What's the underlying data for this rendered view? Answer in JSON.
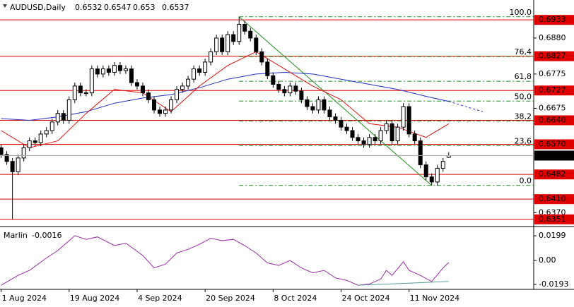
{
  "chart_data": {
    "type": "candlestick",
    "symbol": "AUDUSD,Daily",
    "x": [
      0,
      1,
      2,
      3,
      4,
      5,
      6,
      7,
      8,
      9,
      10,
      11,
      12,
      13,
      14,
      15,
      16,
      17,
      18,
      19,
      20,
      21,
      22,
      23,
      24,
      25,
      26,
      27,
      28,
      29,
      30,
      31,
      32,
      33,
      34,
      35,
      36,
      37,
      38,
      39,
      40,
      41,
      42,
      43,
      44,
      45,
      46,
      47,
      48,
      49,
      50,
      51,
      52,
      53,
      54,
      55,
      56,
      57,
      58,
      59,
      60,
      61,
      62,
      63,
      64,
      65,
      66,
      67,
      68,
      69,
      70,
      71,
      72,
      73,
      74,
      75,
      76,
      77,
      78,
      79
    ],
    "open": [
      0.656,
      0.654,
      0.652,
      0.649,
      0.653,
      0.656,
      0.658,
      0.6575,
      0.66,
      0.661,
      0.6635,
      0.666,
      0.664,
      0.67,
      0.674,
      0.672,
      0.672,
      0.679,
      0.6775,
      0.679,
      0.678,
      0.68,
      0.6785,
      0.679,
      0.675,
      0.674,
      0.672,
      0.67,
      0.667,
      0.666,
      0.667,
      0.67,
      0.673,
      0.674,
      0.676,
      0.679,
      0.678,
      0.681,
      0.684,
      0.688,
      0.684,
      0.689,
      0.687,
      0.692,
      0.69,
      0.688,
      0.684,
      0.681,
      0.677,
      0.6745,
      0.673,
      0.672,
      0.674,
      0.6725,
      0.67,
      0.668,
      0.667,
      0.67,
      0.667,
      0.665,
      0.664,
      0.662,
      0.661,
      0.659,
      0.658,
      0.657,
      0.659,
      0.658,
      0.661,
      0.663,
      0.658,
      0.662,
      0.668,
      0.66,
      0.658,
      0.651,
      0.6475,
      0.646,
      0.65,
      0.6532
    ],
    "high": [
      0.657,
      0.655,
      0.653,
      0.654,
      0.657,
      0.659,
      0.659,
      0.661,
      0.662,
      0.6645,
      0.667,
      0.667,
      0.671,
      0.675,
      0.675,
      0.673,
      0.68,
      0.68,
      0.68,
      0.68,
      0.681,
      0.681,
      0.68,
      0.68,
      0.676,
      0.675,
      0.673,
      0.671,
      0.668,
      0.668,
      0.671,
      0.674,
      0.675,
      0.677,
      0.68,
      0.68,
      0.682,
      0.685,
      0.689,
      0.689,
      0.69,
      0.69,
      0.6942,
      0.693,
      0.691,
      0.689,
      0.685,
      0.682,
      0.678,
      0.6755,
      0.674,
      0.675,
      0.675,
      0.6735,
      0.671,
      0.669,
      0.671,
      0.671,
      0.668,
      0.666,
      0.665,
      0.663,
      0.662,
      0.66,
      0.659,
      0.66,
      0.66,
      0.662,
      0.664,
      0.664,
      0.663,
      0.669,
      0.669,
      0.661,
      0.659,
      0.652,
      0.6485,
      0.651,
      0.653,
      0.6547
    ],
    "low": [
      0.653,
      0.651,
      0.635,
      0.648,
      0.652,
      0.655,
      0.6565,
      0.6565,
      0.659,
      0.66,
      0.6625,
      0.663,
      0.663,
      0.669,
      0.671,
      0.671,
      0.671,
      0.6765,
      0.6765,
      0.677,
      0.677,
      0.6775,
      0.6775,
      0.674,
      0.673,
      0.671,
      0.669,
      0.666,
      0.665,
      0.665,
      0.666,
      0.669,
      0.672,
      0.673,
      0.675,
      0.677,
      0.677,
      0.68,
      0.683,
      0.683,
      0.683,
      0.686,
      0.686,
      0.689,
      0.687,
      0.683,
      0.68,
      0.676,
      0.6735,
      0.672,
      0.671,
      0.671,
      0.6715,
      0.669,
      0.667,
      0.666,
      0.666,
      0.666,
      0.664,
      0.663,
      0.661,
      0.66,
      0.658,
      0.657,
      0.656,
      0.656,
      0.657,
      0.657,
      0.66,
      0.657,
      0.657,
      0.661,
      0.659,
      0.657,
      0.65,
      0.6465,
      0.645,
      0.645,
      0.649,
      0.653
    ],
    "close": [
      0.654,
      0.652,
      0.649,
      0.653,
      0.656,
      0.658,
      0.6575,
      0.66,
      0.661,
      0.6635,
      0.666,
      0.664,
      0.67,
      0.674,
      0.672,
      0.672,
      0.679,
      0.6775,
      0.679,
      0.678,
      0.68,
      0.6785,
      0.679,
      0.675,
      0.674,
      0.672,
      0.67,
      0.667,
      0.666,
      0.667,
      0.67,
      0.673,
      0.674,
      0.676,
      0.679,
      0.678,
      0.681,
      0.684,
      0.688,
      0.684,
      0.689,
      0.687,
      0.692,
      0.69,
      0.688,
      0.684,
      0.681,
      0.677,
      0.6745,
      0.673,
      0.672,
      0.674,
      0.6725,
      0.67,
      0.668,
      0.667,
      0.67,
      0.667,
      0.665,
      0.664,
      0.662,
      0.661,
      0.659,
      0.658,
      0.657,
      0.659,
      0.658,
      0.661,
      0.663,
      0.658,
      0.662,
      0.668,
      0.66,
      0.658,
      0.651,
      0.6475,
      0.646,
      0.65,
      0.652,
      0.6537
    ],
    "xlim": [
      -0.2,
      94
    ],
    "xticks": [
      {
        "value": 0,
        "label": "1 Aug 2024"
      },
      {
        "value": 12,
        "label": "19 Aug 2024"
      },
      {
        "value": 24,
        "label": "4 Sep 2024"
      },
      {
        "value": 36,
        "label": "20 Sep 2024"
      },
      {
        "value": 48,
        "label": "8 Oct 2024"
      },
      {
        "value": 60,
        "label": "24 Oct 2024"
      },
      {
        "value": 72,
        "label": "11 Nov 2024"
      }
    ],
    "ylim": [
      0.633,
      0.6991
    ],
    "yticks": [
      {
        "value": 0.688,
        "label": "0.6880"
      },
      {
        "value": 0.6775,
        "label": "0.6775"
      },
      {
        "value": 0.6675,
        "label": "0.6675"
      },
      {
        "value": 0.637,
        "label": "0.6370"
      }
    ],
    "levels": [
      {
        "value": 0.6933,
        "label": "0.6933"
      },
      {
        "value": 0.6827,
        "label": "0.6827"
      },
      {
        "value": 0.6727,
        "label": "0.6727"
      },
      {
        "value": 0.664,
        "label": "0.6640"
      },
      {
        "value": 0.657,
        "label": "0.6570"
      },
      {
        "value": 0.6482,
        "label": "0.6482"
      },
      {
        "value": 0.641,
        "label": "0.6410"
      },
      {
        "value": 0.6351,
        "label": "0.6351"
      }
    ],
    "level_color": "#e00000",
    "fib": {
      "start": 42,
      "color": "#1f8f1f",
      "levels": [
        {
          "value": 0.6942,
          "label": "100.0"
        },
        {
          "value": 0.6826,
          "label": "76,4"
        },
        {
          "value": 0.6754,
          "label": "61,8"
        },
        {
          "value": 0.6696,
          "label": "50,0"
        },
        {
          "value": 0.6638,
          "label": "38,2"
        },
        {
          "value": 0.6566,
          "label": "23,6"
        },
        {
          "value": 0.645,
          "label": "0.0"
        }
      ]
    },
    "trendline": {
      "color": "#1f8f1f",
      "x": [
        42,
        76
      ],
      "values": [
        0.6942,
        0.645
      ]
    },
    "overlays": [
      {
        "color": "#1f2fbf",
        "x": [
          0,
          5,
          10,
          15,
          20,
          25,
          30,
          35,
          40,
          45,
          50,
          55,
          60,
          65,
          70,
          75,
          79
        ],
        "values": [
          0.6645,
          0.664,
          0.665,
          0.6665,
          0.669,
          0.6705,
          0.6715,
          0.6735,
          0.676,
          0.6775,
          0.678,
          0.6775,
          0.676,
          0.6745,
          0.673,
          0.671,
          0.6695
        ]
      },
      {
        "color": "#e01010",
        "x": [
          0,
          5,
          10,
          15,
          20,
          25,
          30,
          35,
          40,
          45,
          50,
          55,
          60,
          65,
          70,
          75,
          79
        ],
        "values": [
          0.661,
          0.656,
          0.658,
          0.666,
          0.673,
          0.672,
          0.6665,
          0.674,
          0.68,
          0.684,
          0.679,
          0.674,
          0.67,
          0.663,
          0.662,
          0.659,
          0.663
        ]
      }
    ],
    "projection": {
      "color": "#1f2fbf",
      "x": [
        79,
        85
      ],
      "values": [
        0.6695,
        0.6665
      ]
    },
    "indicator": {
      "name": "Marlin",
      "color": "#9a2aa8",
      "ylim": [
        -0.0233,
        0.0268
      ],
      "yticks": [
        {
          "value": 0.0199,
          "label": "0.0199"
        },
        {
          "value": 0,
          "label": "0.00"
        },
        {
          "value": -0.0193,
          "label": "-0.0193"
        }
      ],
      "x": [
        0,
        3,
        5,
        8,
        10,
        12,
        13,
        15,
        17,
        20,
        22,
        25,
        27,
        29,
        31,
        33,
        35,
        37,
        39,
        41,
        43,
        45,
        47,
        49,
        51,
        53,
        55,
        57,
        59,
        61,
        63,
        65,
        67,
        68,
        69,
        71,
        72,
        74,
        76,
        78,
        79
      ],
      "values": [
        -0.02,
        -0.012,
        -0.008,
        0.002,
        0.008,
        0.016,
        0.02,
        0.017,
        0.019,
        0.012,
        0.014,
        0.004,
        -0.006,
        -0.003,
        0.006,
        0.009,
        0.013,
        0.018,
        0.016,
        0.017,
        0.012,
        0.006,
        -0.002,
        -0.004,
        0.0,
        -0.006,
        -0.01,
        -0.008,
        -0.014,
        -0.016,
        -0.02,
        -0.019,
        -0.015,
        -0.008,
        -0.012,
        -0.001,
        -0.008,
        -0.012,
        -0.017,
        -0.006,
        -0.0016
      ],
      "divergence": {
        "color": "#5a9a9a",
        "x": [
          63,
          79
        ],
        "values": [
          -0.02,
          -0.017
        ]
      }
    }
  }
}
